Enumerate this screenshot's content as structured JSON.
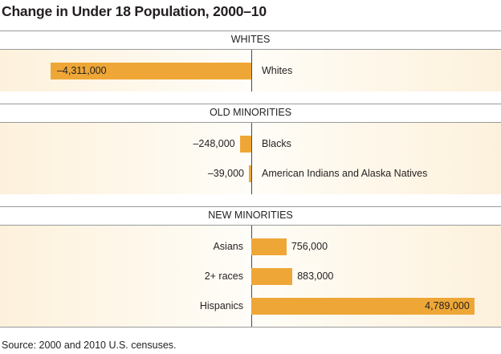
{
  "chart_data": {
    "type": "bar",
    "orientation": "horizontal",
    "title": "Change in Under 18 Population, 2000–10",
    "source": "Source: 2000 and 2010 U.S. censuses.",
    "xlim": [
      -4600000,
      4900000
    ],
    "grid": false,
    "legend": "none",
    "bar_color": "#eea737",
    "groups": [
      {
        "label": "WHITES",
        "items": [
          {
            "category": "Whites",
            "value": -4311000,
            "value_label": "–4,311,000"
          }
        ]
      },
      {
        "label": "OLD MINORITIES",
        "items": [
          {
            "category": "Blacks",
            "value": -248000,
            "value_label": "–248,000"
          },
          {
            "category": "American Indians and Alaska Natives",
            "value": -39000,
            "value_label": "–39,000"
          }
        ]
      },
      {
        "label": "NEW MINORITIES",
        "items": [
          {
            "category": "Asians",
            "value": 756000,
            "value_label": "756,000"
          },
          {
            "category": "2+ races",
            "value": 883000,
            "value_label": "883,000"
          },
          {
            "category": "Hispanics",
            "value": 4789000,
            "value_label": "4,789,000"
          }
        ]
      }
    ]
  }
}
